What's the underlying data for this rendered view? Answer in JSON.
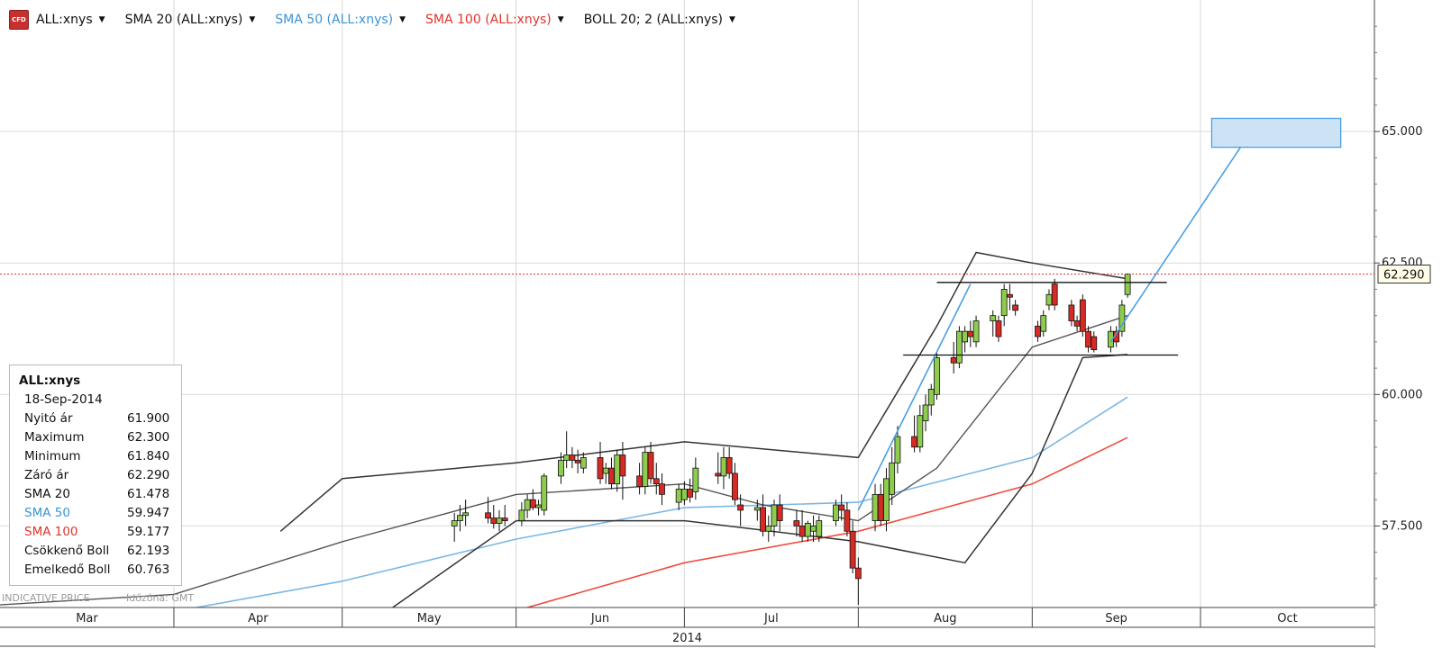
{
  "header": {
    "logo_text": "CFD",
    "indicators": [
      {
        "label": "ALL:xnys",
        "color": "#111111"
      },
      {
        "label": "SMA 20 (ALL:xnys)",
        "color": "#111111"
      },
      {
        "label": "SMA 50 (ALL:xnys)",
        "color": "#3a93d5"
      },
      {
        "label": "SMA 100 (ALL:xnys)",
        "color": "#e0332b"
      },
      {
        "label": "BOLL 20; 2 (ALL:xnys)",
        "color": "#111111"
      }
    ]
  },
  "info_box": {
    "title": "ALL:xnys",
    "date": "18-Sep-2014",
    "rows": [
      {
        "label": "Nyitó ár",
        "value": "61.900",
        "color": "#111111"
      },
      {
        "label": "Maximum",
        "value": "62.300",
        "color": "#111111"
      },
      {
        "label": "Minimum",
        "value": "61.840",
        "color": "#111111"
      },
      {
        "label": "Záró ár",
        "value": "62.290",
        "color": "#111111"
      },
      {
        "label": "SMA 20",
        "value": "61.478",
        "color": "#111111"
      },
      {
        "label": "SMA 50",
        "value": "59.947",
        "color": "#3a93d5"
      },
      {
        "label": "SMA 100",
        "value": "59.177",
        "color": "#e0332b"
      },
      {
        "label": "Csökkenő Boll",
        "value": "62.193",
        "color": "#111111"
      },
      {
        "label": "Emelkedő Boll",
        "value": "60.763",
        "color": "#111111"
      }
    ]
  },
  "footer": {
    "indicative_text": "INDICATIVE PRICE",
    "timezone_text": "Időzóna: GMT"
  },
  "colors": {
    "up_candle": "#8dcc4e",
    "down_candle": "#d62b25",
    "sma20": "#555555",
    "sma50": "#7ab7e3",
    "sma100": "#ee4c40",
    "bollinger": "#333333",
    "trendline": "#4a9fe0",
    "target_box_fill": "#cde3f5",
    "target_box_stroke": "#4a9fe0",
    "last_price_line": "#e0332b",
    "grid": "#d9d9d9"
  },
  "chart_data": {
    "type": "candlestick",
    "symbol": "ALL:xnys",
    "x_axis": {
      "months": [
        "Mar",
        "Apr",
        "May",
        "Jun",
        "Jul",
        "Aug",
        "Sep",
        "Oct"
      ],
      "year": "2014",
      "range": [
        "2014-03-01",
        "2014-10-31"
      ]
    },
    "y_axis": {
      "tick_labels": [
        "57.500",
        "60.000",
        "62.500",
        "65.000"
      ],
      "ticks": [
        57.5,
        60.0,
        62.5,
        65.0
      ],
      "range": [
        55.95,
        67.5
      ],
      "position": "right"
    },
    "last_price": {
      "value": 62.29,
      "label": "62.290"
    },
    "grid": true,
    "candles": [
      {
        "date": "2014-05-21",
        "o": 57.5,
        "h": 57.75,
        "l": 57.2,
        "c": 57.6
      },
      {
        "date": "2014-05-22",
        "o": 57.6,
        "h": 57.9,
        "l": 57.4,
        "c": 57.7
      },
      {
        "date": "2014-05-23",
        "o": 57.7,
        "h": 58.0,
        "l": 57.5,
        "c": 57.75
      },
      {
        "date": "2014-05-27",
        "o": 57.75,
        "h": 58.05,
        "l": 57.55,
        "c": 57.65
      },
      {
        "date": "2014-05-28",
        "o": 57.65,
        "h": 57.9,
        "l": 57.45,
        "c": 57.55
      },
      {
        "date": "2014-05-29",
        "o": 57.55,
        "h": 57.8,
        "l": 57.4,
        "c": 57.65
      },
      {
        "date": "2014-05-30",
        "o": 57.65,
        "h": 57.9,
        "l": 57.5,
        "c": 57.6
      },
      {
        "date": "2014-06-02",
        "o": 57.6,
        "h": 57.95,
        "l": 57.5,
        "c": 57.8
      },
      {
        "date": "2014-06-03",
        "o": 57.8,
        "h": 58.1,
        "l": 57.65,
        "c": 58.0
      },
      {
        "date": "2014-06-04",
        "o": 58.0,
        "h": 58.2,
        "l": 57.8,
        "c": 57.85
      },
      {
        "date": "2014-06-05",
        "o": 57.85,
        "h": 58.0,
        "l": 57.7,
        "c": 57.9
      },
      {
        "date": "2014-06-06",
        "o": 57.8,
        "h": 58.5,
        "l": 57.7,
        "c": 58.45
      },
      {
        "date": "2014-06-09",
        "o": 58.45,
        "h": 58.9,
        "l": 58.3,
        "c": 58.75
      },
      {
        "date": "2014-06-10",
        "o": 58.75,
        "h": 59.3,
        "l": 58.6,
        "c": 58.85
      },
      {
        "date": "2014-06-11",
        "o": 58.85,
        "h": 59.0,
        "l": 58.6,
        "c": 58.75
      },
      {
        "date": "2014-06-12",
        "o": 58.75,
        "h": 58.95,
        "l": 58.5,
        "c": 58.7
      },
      {
        "date": "2014-06-13",
        "o": 58.6,
        "h": 58.9,
        "l": 58.5,
        "c": 58.8
      },
      {
        "date": "2014-06-16",
        "o": 58.8,
        "h": 59.1,
        "l": 58.3,
        "c": 58.4
      },
      {
        "date": "2014-06-17",
        "o": 58.5,
        "h": 58.7,
        "l": 58.3,
        "c": 58.6
      },
      {
        "date": "2014-06-18",
        "o": 58.6,
        "h": 58.8,
        "l": 58.2,
        "c": 58.3
      },
      {
        "date": "2014-06-19",
        "o": 58.3,
        "h": 58.95,
        "l": 58.15,
        "c": 58.85
      },
      {
        "date": "2014-06-20",
        "o": 58.85,
        "h": 59.1,
        "l": 58.0,
        "c": 58.45
      },
      {
        "date": "2014-06-23",
        "o": 58.45,
        "h": 58.7,
        "l": 58.1,
        "c": 58.25
      },
      {
        "date": "2014-06-24",
        "o": 58.25,
        "h": 59.0,
        "l": 58.1,
        "c": 58.9
      },
      {
        "date": "2014-06-25",
        "o": 58.9,
        "h": 59.1,
        "l": 58.3,
        "c": 58.4
      },
      {
        "date": "2014-06-26",
        "o": 58.4,
        "h": 58.7,
        "l": 58.1,
        "c": 58.3
      },
      {
        "date": "2014-06-27",
        "o": 58.3,
        "h": 58.5,
        "l": 57.9,
        "c": 58.1
      },
      {
        "date": "2014-06-30",
        "o": 57.95,
        "h": 58.3,
        "l": 57.8,
        "c": 58.2
      },
      {
        "date": "2014-07-01",
        "o": 58.0,
        "h": 58.35,
        "l": 57.9,
        "c": 58.2
      },
      {
        "date": "2014-07-02",
        "o": 58.2,
        "h": 58.4,
        "l": 57.95,
        "c": 58.05
      },
      {
        "date": "2014-07-03",
        "o": 58.15,
        "h": 58.8,
        "l": 58.0,
        "c": 58.6
      },
      {
        "date": "2014-07-07",
        "o": 58.5,
        "h": 58.9,
        "l": 58.3,
        "c": 58.45
      },
      {
        "date": "2014-07-08",
        "o": 58.45,
        "h": 59.0,
        "l": 58.2,
        "c": 58.8
      },
      {
        "date": "2014-07-09",
        "o": 58.8,
        "h": 59.0,
        "l": 58.4,
        "c": 58.5
      },
      {
        "date": "2014-07-10",
        "o": 58.5,
        "h": 58.7,
        "l": 57.9,
        "c": 58.0
      },
      {
        "date": "2014-07-11",
        "o": 57.9,
        "h": 58.1,
        "l": 57.5,
        "c": 57.8
      },
      {
        "date": "2014-07-14",
        "o": 57.8,
        "h": 58.0,
        "l": 57.6,
        "c": 57.85
      },
      {
        "date": "2014-07-15",
        "o": 57.85,
        "h": 58.1,
        "l": 57.3,
        "c": 57.4
      },
      {
        "date": "2014-07-16",
        "o": 57.4,
        "h": 57.7,
        "l": 57.2,
        "c": 57.5
      },
      {
        "date": "2014-07-17",
        "o": 57.5,
        "h": 58.0,
        "l": 57.3,
        "c": 57.9
      },
      {
        "date": "2014-07-18",
        "o": 57.9,
        "h": 58.1,
        "l": 57.4,
        "c": 57.6
      },
      {
        "date": "2014-07-21",
        "o": 57.6,
        "h": 57.8,
        "l": 57.3,
        "c": 57.5
      },
      {
        "date": "2014-07-22",
        "o": 57.5,
        "h": 57.8,
        "l": 57.2,
        "c": 57.3
      },
      {
        "date": "2014-07-23",
        "o": 57.3,
        "h": 57.6,
        "l": 57.2,
        "c": 57.55
      },
      {
        "date": "2014-07-24",
        "o": 57.4,
        "h": 57.7,
        "l": 57.2,
        "c": 57.5
      },
      {
        "date": "2014-07-25",
        "o": 57.3,
        "h": 57.7,
        "l": 57.2,
        "c": 57.6
      },
      {
        "date": "2014-07-28",
        "o": 57.6,
        "h": 58.0,
        "l": 57.5,
        "c": 57.9
      },
      {
        "date": "2014-07-29",
        "o": 57.9,
        "h": 58.1,
        "l": 57.6,
        "c": 57.8
      },
      {
        "date": "2014-07-30",
        "o": 57.8,
        "h": 57.95,
        "l": 57.3,
        "c": 57.4
      },
      {
        "date": "2014-07-31",
        "o": 57.4,
        "h": 57.6,
        "l": 56.6,
        "c": 56.7
      },
      {
        "date": "2014-08-01",
        "o": 56.7,
        "h": 56.9,
        "l": 56.0,
        "c": 56.5
      },
      {
        "date": "2014-08-04",
        "o": 57.6,
        "h": 58.3,
        "l": 57.4,
        "c": 58.1
      },
      {
        "date": "2014-08-05",
        "o": 58.1,
        "h": 58.3,
        "l": 57.5,
        "c": 57.6
      },
      {
        "date": "2014-08-06",
        "o": 57.6,
        "h": 58.6,
        "l": 57.4,
        "c": 58.4
      },
      {
        "date": "2014-08-07",
        "o": 58.1,
        "h": 59.0,
        "l": 57.9,
        "c": 58.7
      },
      {
        "date": "2014-08-08",
        "o": 58.7,
        "h": 59.4,
        "l": 58.5,
        "c": 59.2
      },
      {
        "date": "2014-08-11",
        "o": 59.2,
        "h": 59.6,
        "l": 58.9,
        "c": 59.0
      },
      {
        "date": "2014-08-12",
        "o": 59.0,
        "h": 59.8,
        "l": 58.9,
        "c": 59.6
      },
      {
        "date": "2014-08-13",
        "o": 59.5,
        "h": 60.0,
        "l": 59.3,
        "c": 59.8
      },
      {
        "date": "2014-08-14",
        "o": 59.8,
        "h": 60.2,
        "l": 59.6,
        "c": 60.1
      },
      {
        "date": "2014-08-15",
        "o": 60.0,
        "h": 60.8,
        "l": 59.9,
        "c": 60.7
      },
      {
        "date": "2014-08-18",
        "o": 60.7,
        "h": 61.0,
        "l": 60.4,
        "c": 60.6
      },
      {
        "date": "2014-08-19",
        "o": 60.6,
        "h": 61.3,
        "l": 60.5,
        "c": 61.2
      },
      {
        "date": "2014-08-20",
        "o": 61.0,
        "h": 61.3,
        "l": 60.8,
        "c": 61.2
      },
      {
        "date": "2014-08-21",
        "o": 61.2,
        "h": 61.4,
        "l": 60.9,
        "c": 61.1
      },
      {
        "date": "2014-08-22",
        "o": 61.0,
        "h": 61.5,
        "l": 60.9,
        "c": 61.4
      },
      {
        "date": "2014-08-25",
        "o": 61.4,
        "h": 61.6,
        "l": 61.1,
        "c": 61.5
      },
      {
        "date": "2014-08-26",
        "o": 61.4,
        "h": 61.5,
        "l": 61.0,
        "c": 61.1
      },
      {
        "date": "2014-08-27",
        "o": 61.5,
        "h": 62.1,
        "l": 61.3,
        "c": 62.0
      },
      {
        "date": "2014-08-28",
        "o": 61.9,
        "h": 62.1,
        "l": 61.6,
        "c": 61.85
      },
      {
        "date": "2014-08-29",
        "o": 61.7,
        "h": 61.8,
        "l": 61.5,
        "c": 61.6
      },
      {
        "date": "2014-09-02",
        "o": 61.3,
        "h": 61.4,
        "l": 61.0,
        "c": 61.1
      },
      {
        "date": "2014-09-03",
        "o": 61.2,
        "h": 61.6,
        "l": 61.1,
        "c": 61.5
      },
      {
        "date": "2014-09-04",
        "o": 61.7,
        "h": 62.0,
        "l": 61.6,
        "c": 61.9
      },
      {
        "date": "2014-09-05",
        "o": 62.1,
        "h": 62.2,
        "l": 61.6,
        "c": 61.7
      },
      {
        "date": "2014-09-08",
        "o": 61.7,
        "h": 61.8,
        "l": 61.3,
        "c": 61.4
      },
      {
        "date": "2014-09-09",
        "o": 61.4,
        "h": 61.5,
        "l": 61.2,
        "c": 61.3
      },
      {
        "date": "2014-09-10",
        "o": 61.8,
        "h": 61.9,
        "l": 61.1,
        "c": 61.2
      },
      {
        "date": "2014-09-11",
        "o": 61.2,
        "h": 61.3,
        "l": 60.8,
        "c": 60.9
      },
      {
        "date": "2014-09-12",
        "o": 61.1,
        "h": 61.2,
        "l": 60.8,
        "c": 60.85
      },
      {
        "date": "2014-09-15",
        "o": 60.9,
        "h": 61.3,
        "l": 60.8,
        "c": 61.2
      },
      {
        "date": "2014-09-16",
        "o": 61.2,
        "h": 61.3,
        "l": 60.9,
        "c": 61.0
      },
      {
        "date": "2014-09-17",
        "o": 61.2,
        "h": 61.8,
        "l": 61.1,
        "c": 61.7
      },
      {
        "date": "2014-09-18",
        "o": 61.9,
        "h": 62.3,
        "l": 61.84,
        "c": 62.29
      }
    ],
    "overlays": {
      "sma20": [
        [
          "2014-03-01",
          56.0
        ],
        [
          "2014-04-01",
          56.2
        ],
        [
          "2014-05-01",
          57.2
        ],
        [
          "2014-06-01",
          58.1
        ],
        [
          "2014-07-01",
          58.3
        ],
        [
          "2014-07-15",
          57.9
        ],
        [
          "2014-08-01",
          57.6
        ],
        [
          "2014-08-15",
          58.6
        ],
        [
          "2014-09-01",
          60.9
        ],
        [
          "2014-09-18",
          61.5
        ]
      ],
      "sma50": [
        [
          "2014-04-05",
          55.95
        ],
        [
          "2014-05-01",
          56.45
        ],
        [
          "2014-06-01",
          57.25
        ],
        [
          "2014-07-01",
          57.85
        ],
        [
          "2014-08-01",
          57.95
        ],
        [
          "2014-09-01",
          58.8
        ],
        [
          "2014-09-18",
          59.95
        ]
      ],
      "sma100": [
        [
          "2014-06-03",
          55.95
        ],
        [
          "2014-07-01",
          56.8
        ],
        [
          "2014-08-01",
          57.4
        ],
        [
          "2014-09-01",
          58.3
        ],
        [
          "2014-09-18",
          59.18
        ]
      ],
      "boll_upper": [
        [
          "2014-04-20",
          57.4
        ],
        [
          "2014-05-01",
          58.4
        ],
        [
          "2014-06-01",
          58.7
        ],
        [
          "2014-07-01",
          59.1
        ],
        [
          "2014-08-01",
          58.8
        ],
        [
          "2014-08-15",
          61.3
        ],
        [
          "2014-08-22",
          62.7
        ],
        [
          "2014-09-01",
          62.5
        ],
        [
          "2014-09-18",
          62.2
        ]
      ],
      "boll_lower": [
        [
          "2014-05-10",
          55.95
        ],
        [
          "2014-06-01",
          57.6
        ],
        [
          "2014-07-01",
          57.6
        ],
        [
          "2014-08-01",
          57.2
        ],
        [
          "2014-08-20",
          56.8
        ],
        [
          "2014-09-01",
          58.5
        ],
        [
          "2014-09-10",
          60.7
        ],
        [
          "2014-09-18",
          60.76
        ]
      ]
    },
    "drawings": {
      "trendline_1": [
        [
          "2014-08-01",
          57.8
        ],
        [
          "2014-08-21",
          62.1
        ]
      ],
      "trendline_2": [
        [
          "2014-09-15",
          61.0
        ],
        [
          "2014-10-10",
          65.0
        ]
      ],
      "resistance": {
        "value": 62.13,
        "from": "2014-08-15",
        "to": "2014-09-25"
      },
      "support": {
        "value": 60.75,
        "from": "2014-08-09",
        "to": "2014-09-27"
      },
      "target_box": {
        "from": "2014-10-03",
        "to": "2014-10-26",
        "low": 64.7,
        "high": 65.25
      }
    }
  }
}
